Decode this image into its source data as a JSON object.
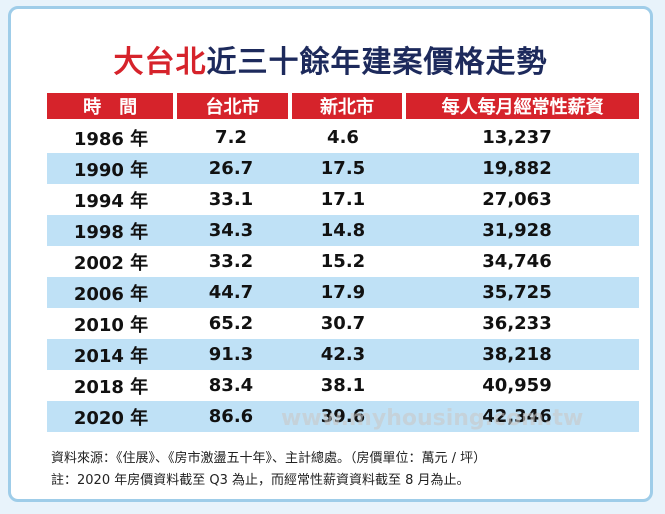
{
  "header": {
    "title_highlight": "大台北",
    "title_rest": "近三十餘年建案價格走勢"
  },
  "table": {
    "columns": [
      "時　間",
      "台北市",
      "新北市",
      "每人每月經常性薪資"
    ],
    "rows": [
      [
        "1986 年",
        "7.2",
        "4.6",
        "13,237"
      ],
      [
        "1990 年",
        "26.7",
        "17.5",
        "19,882"
      ],
      [
        "1994 年",
        "33.1",
        "17.1",
        "27,063"
      ],
      [
        "1998 年",
        "34.3",
        "14.8",
        "31,928"
      ],
      [
        "2002 年",
        "33.2",
        "15.2",
        "34,746"
      ],
      [
        "2006 年",
        "44.7",
        "17.9",
        "35,725"
      ],
      [
        "2010 年",
        "65.2",
        "30.7",
        "36,233"
      ],
      [
        "2014 年",
        "91.3",
        "42.3",
        "38,218"
      ],
      [
        "2018 年",
        "83.4",
        "38.1",
        "40,959"
      ],
      [
        "2020 年",
        "86.6",
        "39.6",
        "42,346"
      ]
    ]
  },
  "watermark": "www.myhousing.com.tw",
  "notes": [
    "資料來源：《住展》、《房市激盪五十年》、主計總處。（房價單位：萬元 / 坪）",
    "註：2020 年房價資料截至 Q3 為止，而經常性薪資資料截至 8 月為止。"
  ]
}
